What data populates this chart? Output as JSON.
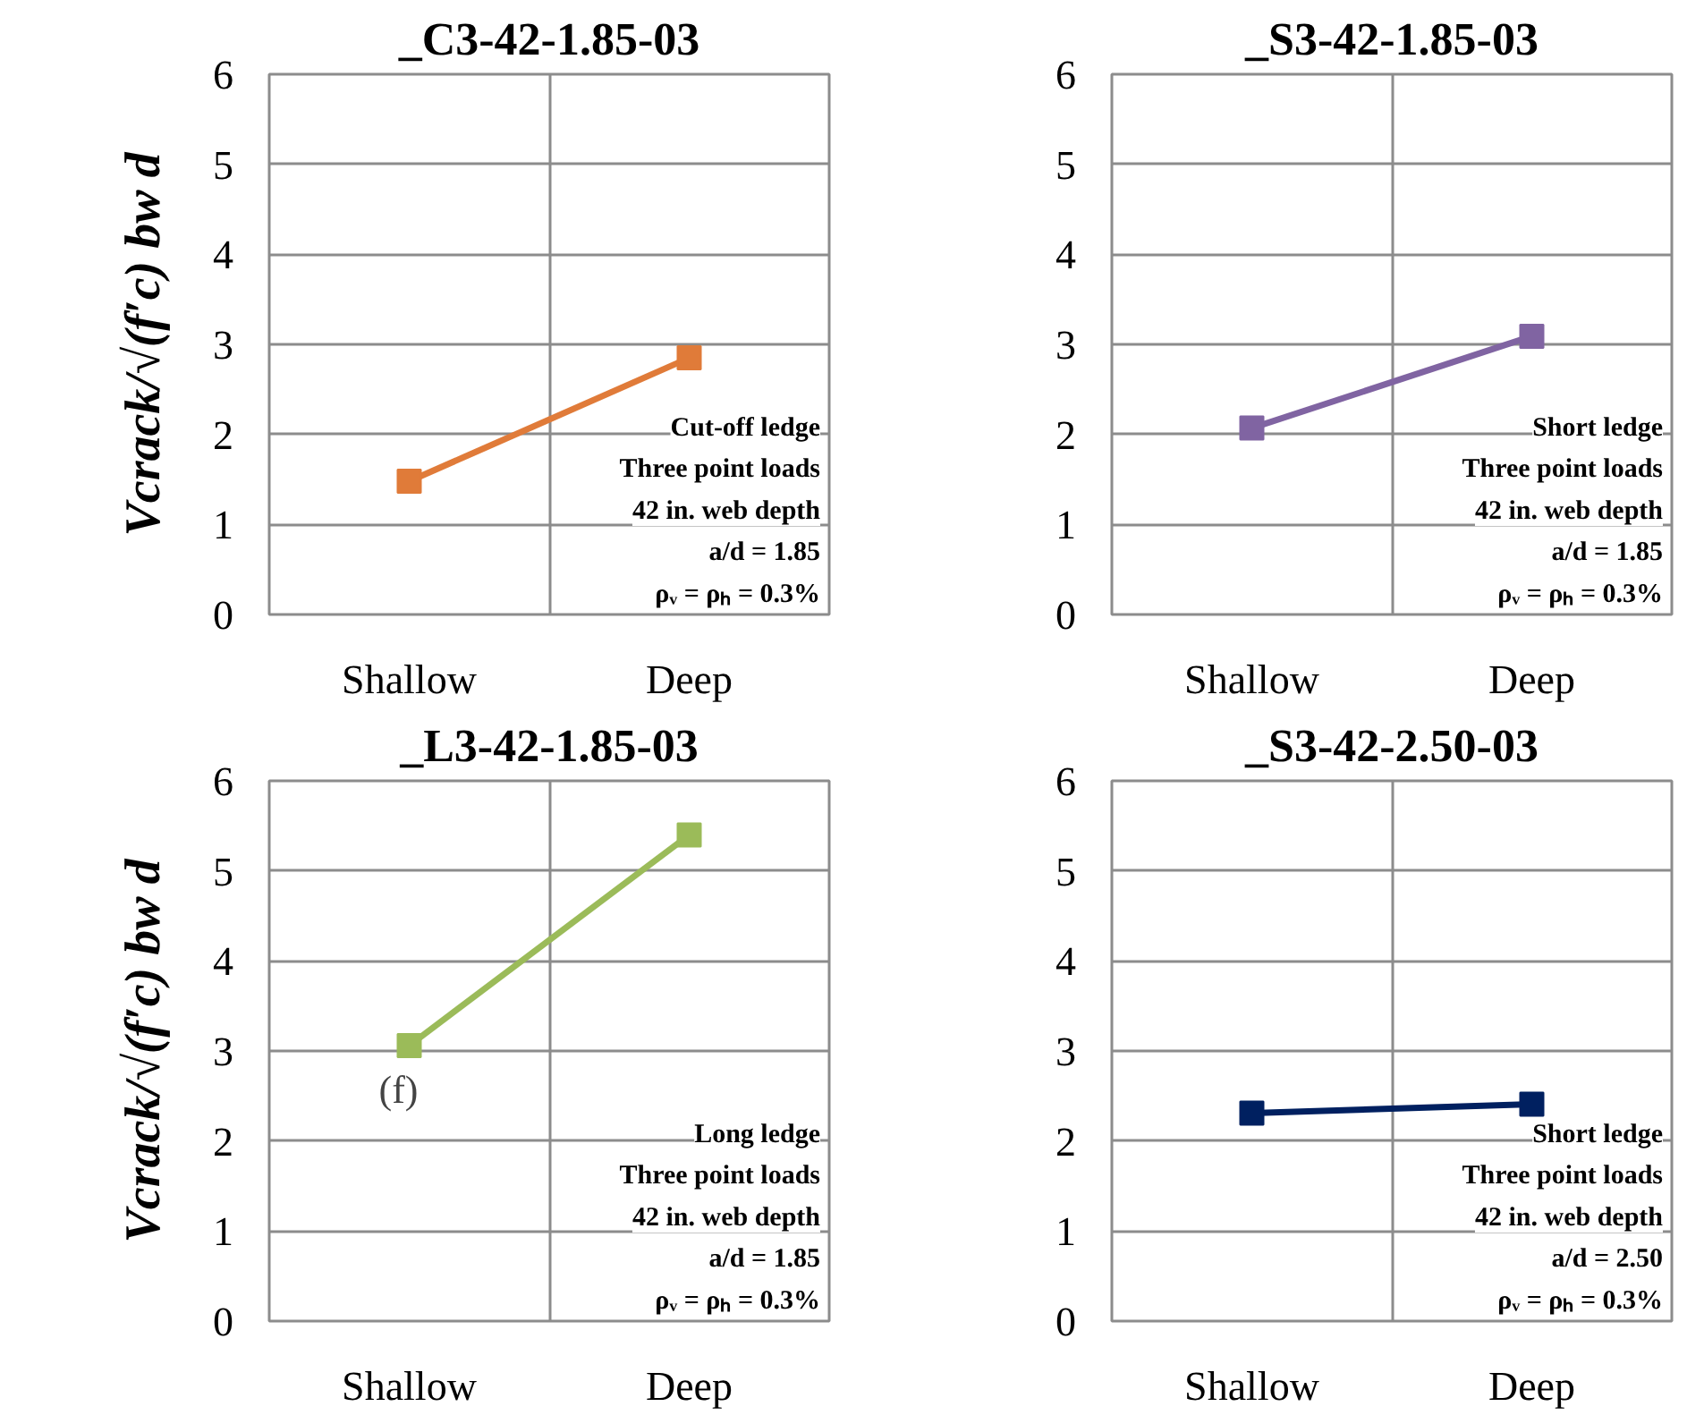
{
  "chart_data": [
    {
      "type": "line",
      "title": "_C3-42-1.85-03",
      "ylabel": "Vcrack/√(f′c) bw d",
      "categories": [
        "Shallow",
        "Deep"
      ],
      "series": [
        {
          "color": "#e07b39",
          "values": [
            1.48,
            2.85
          ]
        }
      ],
      "ylim": [
        0,
        6
      ],
      "yticks": [
        0,
        1,
        2,
        3,
        4,
        5,
        6
      ],
      "grid": true,
      "marker": "square",
      "line_style": "solid",
      "annotations": [
        "Cut-off ledge",
        "Three point loads",
        "42 in. web depth",
        "a/d = 1.85",
        "ρᵥ = ρₕ = 0.3%"
      ]
    },
    {
      "type": "line",
      "title": "_S3-42-1.85-03",
      "categories": [
        "Shallow",
        "Deep"
      ],
      "series": [
        {
          "color": "#8064a2",
          "values": [
            2.07,
            3.09
          ]
        }
      ],
      "ylim": [
        0,
        6
      ],
      "yticks": [
        0,
        1,
        2,
        3,
        4,
        5,
        6
      ],
      "grid": true,
      "marker": "square",
      "line_style": "solid",
      "annotations": [
        "Short ledge",
        "Three point loads",
        "42 in. web depth",
        "a/d = 1.85",
        "ρᵥ = ρₕ = 0.3%"
      ]
    },
    {
      "type": "line",
      "title": "_L3-42-1.85-03",
      "ylabel": "Vcrack/√(f′c) bw d",
      "categories": [
        "Shallow",
        "Deep"
      ],
      "series": [
        {
          "color": "#9bbb59",
          "values": [
            3.06,
            5.4
          ]
        }
      ],
      "ylim": [
        0,
        6
      ],
      "yticks": [
        0,
        1,
        2,
        3,
        4,
        5,
        6
      ],
      "grid": true,
      "marker": "square",
      "line_style": "solid",
      "annotations": [
        {
          "text": "(f)",
          "x": "Shallow",
          "y": 3.06
        },
        "Long ledge",
        "Three point loads",
        "42 in. web depth",
        "a/d = 1.85",
        "ρᵥ = ρₕ = 0.3%"
      ]
    },
    {
      "type": "line",
      "title": "_S3-42-2.50-03",
      "categories": [
        "Shallow",
        "Deep"
      ],
      "series": [
        {
          "color": "#002060",
          "values": [
            2.31,
            2.41
          ]
        }
      ],
      "ylim": [
        0,
        6
      ],
      "yticks": [
        0,
        1,
        2,
        3,
        4,
        5,
        6
      ],
      "grid": true,
      "marker": "square",
      "line_style": "solid",
      "annotations": [
        "Short ledge",
        "Three point loads",
        "42 in. web depth",
        "a/d = 2.50",
        "ρᵥ = ρₕ = 0.3%"
      ]
    }
  ]
}
